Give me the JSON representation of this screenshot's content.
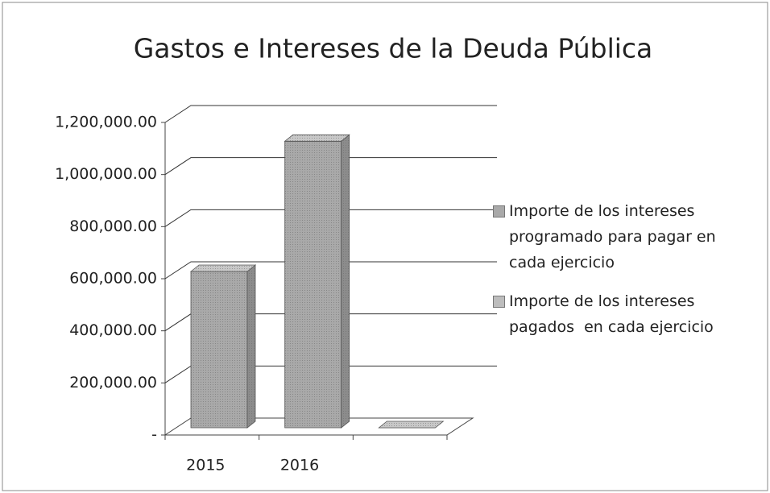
{
  "chart_data": {
    "type": "bar3d",
    "title": "Gastos e Intereses de la Deuda Pública",
    "categories": [
      "2015",
      "2016",
      null
    ],
    "series": [
      {
        "name": "Importe de los intereses programado para pagar en cada ejercicio",
        "color": "#a9a9a9",
        "values": [
          600000,
          1100000,
          0
        ]
      },
      {
        "name": "Importe de los intereses pagados  en cada ejercicio",
        "color": "#bdbdbd",
        "values": [
          null,
          null,
          null
        ]
      }
    ],
    "ylim": [
      0,
      1200000
    ],
    "yticks": [
      {
        "value": 0,
        "label": "-"
      },
      {
        "value": 200000,
        "label": "200,000.00"
      },
      {
        "value": 400000,
        "label": "400,000.00"
      },
      {
        "value": 600000,
        "label": "600,000.00"
      },
      {
        "value": 800000,
        "label": "800,000.00"
      },
      {
        "value": 1000000,
        "label": "1,000,000.00"
      },
      {
        "value": 1200000,
        "label": "1,200,000.00"
      }
    ],
    "grid": true
  }
}
